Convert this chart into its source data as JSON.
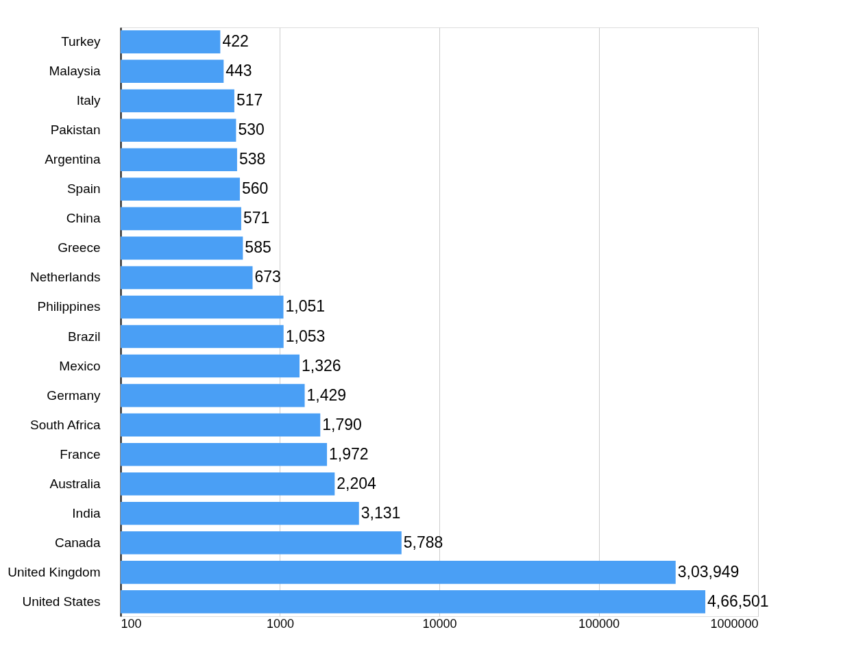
{
  "chart_data": {
    "type": "bar",
    "orientation": "horizontal",
    "log": "x",
    "categories": [
      "Turkey",
      "Malaysia",
      "Italy",
      "Pakistan",
      "Argentina",
      "Spain",
      "China",
      "Greece",
      "Netherlands",
      "Philippines",
      "Brazil",
      "Mexico",
      "Germany",
      "South Africa",
      "France",
      "Australia",
      "India",
      "Canada",
      "United Kingdom",
      "United States"
    ],
    "values": [
      422,
      443,
      517,
      530,
      538,
      560,
      571,
      585,
      673,
      1051,
      1053,
      1326,
      1429,
      1790,
      1972,
      2204,
      3131,
      5788,
      303949,
      466501
    ],
    "value_labels": [
      "422",
      "443",
      "517",
      "530",
      "538",
      "560",
      "571",
      "585",
      "673",
      "1,051",
      "1,053",
      "1,326",
      "1,429",
      "1,790",
      "1,972",
      "2,204",
      "3,131",
      "5,788",
      "3,03,949",
      "4,66,501"
    ],
    "color": "#4a9ff5",
    "xlim": [
      100,
      1000000
    ],
    "xticks": [
      100,
      1000,
      10000,
      100000,
      1000000
    ],
    "grid": "x"
  }
}
